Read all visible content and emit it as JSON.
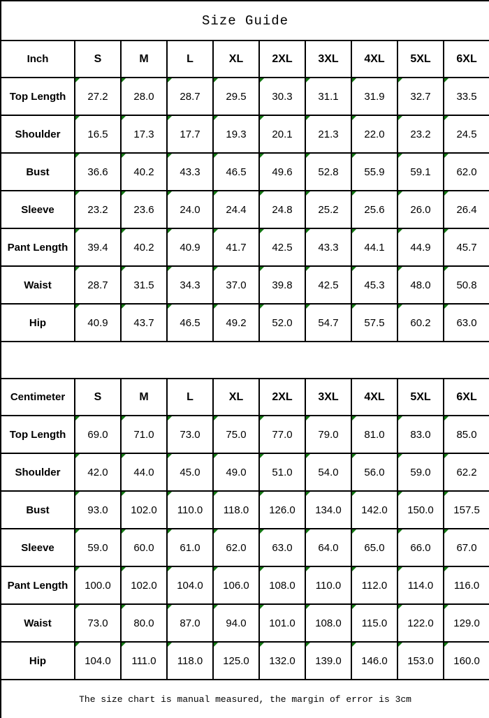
{
  "page_title": "Size Guide",
  "footer_note": "The size chart is manual measured, the margin of error is 3cm",
  "colors": {
    "border_black": "#000000",
    "background_white": "#ffffff",
    "comment_marker_green": "#147814"
  },
  "chart_data": [
    {
      "type": "table",
      "unit": "Inch",
      "sizes": [
        "S",
        "M",
        "L",
        "XL",
        "2XL",
        "3XL",
        "4XL",
        "5XL",
        "6XL"
      ],
      "rows": [
        {
          "label": "Top Length",
          "values": [
            "27.2",
            "28.0",
            "28.7",
            "29.5",
            "30.3",
            "31.1",
            "31.9",
            "32.7",
            "33.5"
          ]
        },
        {
          "label": "Shoulder",
          "values": [
            "16.5",
            "17.3",
            "17.7",
            "19.3",
            "20.1",
            "21.3",
            "22.0",
            "23.2",
            "24.5"
          ]
        },
        {
          "label": "Bust",
          "values": [
            "36.6",
            "40.2",
            "43.3",
            "46.5",
            "49.6",
            "52.8",
            "55.9",
            "59.1",
            "62.0"
          ]
        },
        {
          "label": "Sleeve",
          "values": [
            "23.2",
            "23.6",
            "24.0",
            "24.4",
            "24.8",
            "25.2",
            "25.6",
            "26.0",
            "26.4"
          ]
        },
        {
          "label": "Pant Length",
          "values": [
            "39.4",
            "40.2",
            "40.9",
            "41.7",
            "42.5",
            "43.3",
            "44.1",
            "44.9",
            "45.7"
          ]
        },
        {
          "label": "Waist",
          "values": [
            "28.7",
            "31.5",
            "34.3",
            "37.0",
            "39.8",
            "42.5",
            "45.3",
            "48.0",
            "50.8"
          ]
        },
        {
          "label": "Hip",
          "values": [
            "40.9",
            "43.7",
            "46.5",
            "49.2",
            "52.0",
            "54.7",
            "57.5",
            "60.2",
            "63.0"
          ]
        }
      ]
    },
    {
      "type": "table",
      "unit": "Centimeter",
      "sizes": [
        "S",
        "M",
        "L",
        "XL",
        "2XL",
        "3XL",
        "4XL",
        "5XL",
        "6XL"
      ],
      "rows": [
        {
          "label": "Top Length",
          "values": [
            "69.0",
            "71.0",
            "73.0",
            "75.0",
            "77.0",
            "79.0",
            "81.0",
            "83.0",
            "85.0"
          ]
        },
        {
          "label": "Shoulder",
          "values": [
            "42.0",
            "44.0",
            "45.0",
            "49.0",
            "51.0",
            "54.0",
            "56.0",
            "59.0",
            "62.2"
          ]
        },
        {
          "label": "Bust",
          "values": [
            "93.0",
            "102.0",
            "110.0",
            "118.0",
            "126.0",
            "134.0",
            "142.0",
            "150.0",
            "157.5"
          ]
        },
        {
          "label": "Sleeve",
          "values": [
            "59.0",
            "60.0",
            "61.0",
            "62.0",
            "63.0",
            "64.0",
            "65.0",
            "66.0",
            "67.0"
          ]
        },
        {
          "label": "Pant Length",
          "values": [
            "100.0",
            "102.0",
            "104.0",
            "106.0",
            "108.0",
            "110.0",
            "112.0",
            "114.0",
            "116.0"
          ]
        },
        {
          "label": "Waist",
          "values": [
            "73.0",
            "80.0",
            "87.0",
            "94.0",
            "101.0",
            "108.0",
            "115.0",
            "122.0",
            "129.0"
          ]
        },
        {
          "label": "Hip",
          "values": [
            "104.0",
            "111.0",
            "118.0",
            "125.0",
            "132.0",
            "139.0",
            "146.0",
            "153.0",
            "160.0"
          ]
        }
      ]
    }
  ]
}
